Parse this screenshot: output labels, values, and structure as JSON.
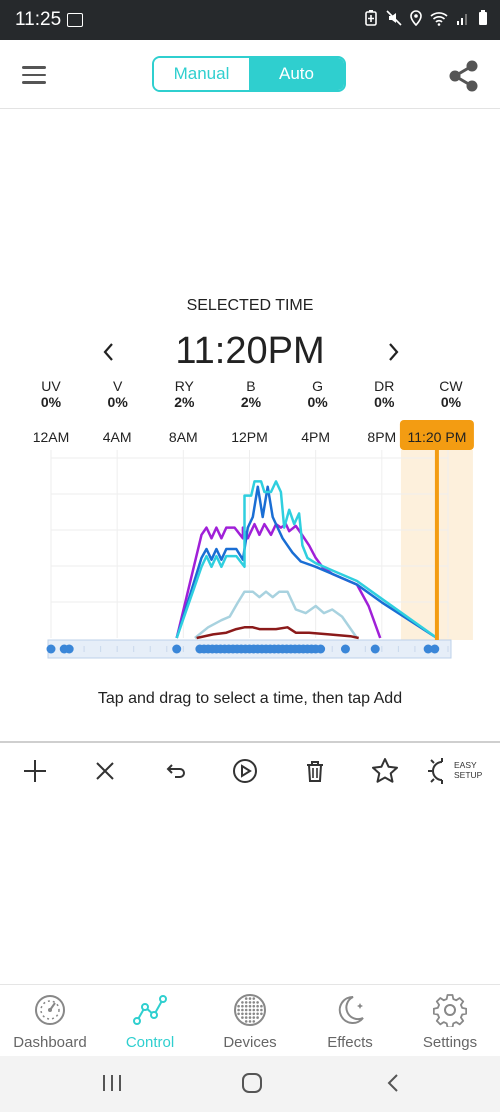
{
  "status": {
    "time": "11:25"
  },
  "header": {
    "mode_manual": "Manual",
    "mode_auto": "Auto",
    "active_mode": "Auto"
  },
  "selected": {
    "label": "SELECTED TIME",
    "time": "11:20PM"
  },
  "channels": [
    {
      "name": "UV",
      "value": "0%"
    },
    {
      "name": "V",
      "value": "0%"
    },
    {
      "name": "RY",
      "value": "2%"
    },
    {
      "name": "B",
      "value": "2%"
    },
    {
      "name": "G",
      "value": "0%"
    },
    {
      "name": "DR",
      "value": "0%"
    },
    {
      "name": "CW",
      "value": "0%"
    }
  ],
  "chart_data": {
    "type": "line",
    "x_ticks": [
      "12AM",
      "4AM",
      "8AM",
      "12PM",
      "4PM",
      "8PM"
    ],
    "selected_marker": "11:20 PM",
    "selected_hour": 23.33,
    "xlim": [
      0,
      24
    ],
    "ylim": [
      0,
      100
    ],
    "grid": true,
    "series": [
      {
        "color": "#a020d8",
        "points": [
          [
            7.6,
            0
          ],
          [
            9.1,
            58
          ],
          [
            9.4,
            62
          ],
          [
            9.7,
            56
          ],
          [
            10,
            62
          ],
          [
            10.3,
            56
          ],
          [
            10.6,
            62
          ],
          [
            11.1,
            62
          ],
          [
            11.6,
            56
          ],
          [
            11.6,
            62
          ],
          [
            11.9,
            56
          ],
          [
            12.3,
            64
          ],
          [
            12.6,
            58
          ],
          [
            12.9,
            64
          ],
          [
            13.3,
            58
          ],
          [
            13.6,
            64
          ],
          [
            13.9,
            62
          ],
          [
            14.2,
            64
          ],
          [
            14.4,
            60
          ],
          [
            14.8,
            63
          ],
          [
            15.1,
            59
          ],
          [
            15.6,
            52
          ],
          [
            16,
            45
          ],
          [
            16.4,
            40
          ],
          [
            17,
            36
          ],
          [
            18.5,
            30
          ],
          [
            19.2,
            18
          ],
          [
            19.9,
            0
          ]
        ]
      },
      {
        "color": "#1a6ed4",
        "points": [
          [
            7.6,
            0
          ],
          [
            9.1,
            45
          ],
          [
            9.4,
            50
          ],
          [
            9.7,
            44
          ],
          [
            10,
            50
          ],
          [
            10.3,
            44
          ],
          [
            10.6,
            50
          ],
          [
            11.2,
            50
          ],
          [
            11.6,
            44
          ],
          [
            11.9,
            62
          ],
          [
            12.2,
            68
          ],
          [
            12.5,
            85
          ],
          [
            12.8,
            68
          ],
          [
            13.1,
            85
          ],
          [
            13.4,
            68
          ],
          [
            13.7,
            62
          ],
          [
            14,
            56
          ],
          [
            14.3,
            52
          ],
          [
            14.6,
            48
          ],
          [
            14.8,
            46
          ],
          [
            15.1,
            43
          ],
          [
            16,
            40
          ],
          [
            17,
            36
          ],
          [
            18.5,
            30
          ],
          [
            20,
            20
          ],
          [
            23.33,
            0
          ]
        ]
      },
      {
        "color": "#2fcfdf",
        "points": [
          [
            7.6,
            0
          ],
          [
            9.1,
            40
          ],
          [
            9.4,
            46
          ],
          [
            9.7,
            40
          ],
          [
            10,
            46
          ],
          [
            10.3,
            40
          ],
          [
            10.6,
            46
          ],
          [
            11.2,
            46
          ],
          [
            11.7,
            40
          ],
          [
            11.7,
            80
          ],
          [
            12.1,
            80
          ],
          [
            12.3,
            88
          ],
          [
            12.7,
            88
          ],
          [
            12.9,
            82
          ],
          [
            13.3,
            82
          ],
          [
            13.6,
            88
          ],
          [
            13.9,
            82
          ],
          [
            14.1,
            62
          ],
          [
            14.4,
            72
          ],
          [
            14.7,
            64
          ],
          [
            15,
            70
          ],
          [
            15.2,
            52
          ],
          [
            15.5,
            45
          ],
          [
            16,
            42
          ],
          [
            17,
            38
          ],
          [
            18.5,
            32
          ],
          [
            20,
            22
          ],
          [
            23.33,
            0
          ]
        ]
      },
      {
        "color": "#a8d2df",
        "points": [
          [
            8.7,
            0
          ],
          [
            9.5,
            6
          ],
          [
            10.3,
            10
          ],
          [
            10.8,
            12
          ],
          [
            11.3,
            20
          ],
          [
            11.7,
            26
          ],
          [
            12.2,
            26
          ],
          [
            12.6,
            23
          ],
          [
            13,
            26
          ],
          [
            13.4,
            23
          ],
          [
            13.8,
            26
          ],
          [
            14.3,
            26
          ],
          [
            14.8,
            16
          ],
          [
            15.4,
            14
          ],
          [
            16,
            18
          ],
          [
            16.5,
            14
          ],
          [
            17,
            16
          ],
          [
            17.6,
            12
          ],
          [
            18.5,
            0
          ]
        ]
      },
      {
        "color": "#8b1a1a",
        "points": [
          [
            8.8,
            0
          ],
          [
            9.8,
            2
          ],
          [
            10.6,
            3
          ],
          [
            11.2,
            5
          ],
          [
            11.7,
            6
          ],
          [
            12.2,
            6
          ],
          [
            12.6,
            5
          ],
          [
            13.6,
            5
          ],
          [
            14.3,
            6
          ],
          [
            14.8,
            3
          ],
          [
            15.6,
            3
          ],
          [
            16.8,
            2
          ],
          [
            18.1,
            1
          ],
          [
            18.6,
            0
          ]
        ]
      }
    ],
    "timeline_points_hours": [
      0,
      0.8,
      1.1,
      7.6,
      9,
      9.25,
      9.5,
      9.75,
      10,
      10.25,
      10.5,
      10.75,
      11,
      11.25,
      11.5,
      11.75,
      12,
      12.25,
      12.5,
      12.75,
      13,
      13.25,
      13.5,
      13.75,
      14,
      14.25,
      14.5,
      14.75,
      15,
      15.25,
      15.5,
      15.75,
      16,
      16.3,
      17.8,
      19.6,
      22.8,
      23.2
    ]
  },
  "hint": "Tap and drag to select a time, then tap Add",
  "toolbar": {
    "easy_setup_line1": "EASY",
    "easy_setup_line2": "SETUP"
  },
  "nav": [
    {
      "label": "Dashboard",
      "icon": "dashboard-gauge-icon"
    },
    {
      "label": "Control",
      "icon": "control-graph-icon",
      "active": true
    },
    {
      "label": "Devices",
      "icon": "devices-led-icon"
    },
    {
      "label": "Effects",
      "icon": "effects-moon-icon"
    },
    {
      "label": "Settings",
      "icon": "settings-gear-icon"
    }
  ],
  "colors": {
    "accent": "#2fcfcf",
    "selection": "#f39c12",
    "timeline_dot": "#3a86d8"
  }
}
